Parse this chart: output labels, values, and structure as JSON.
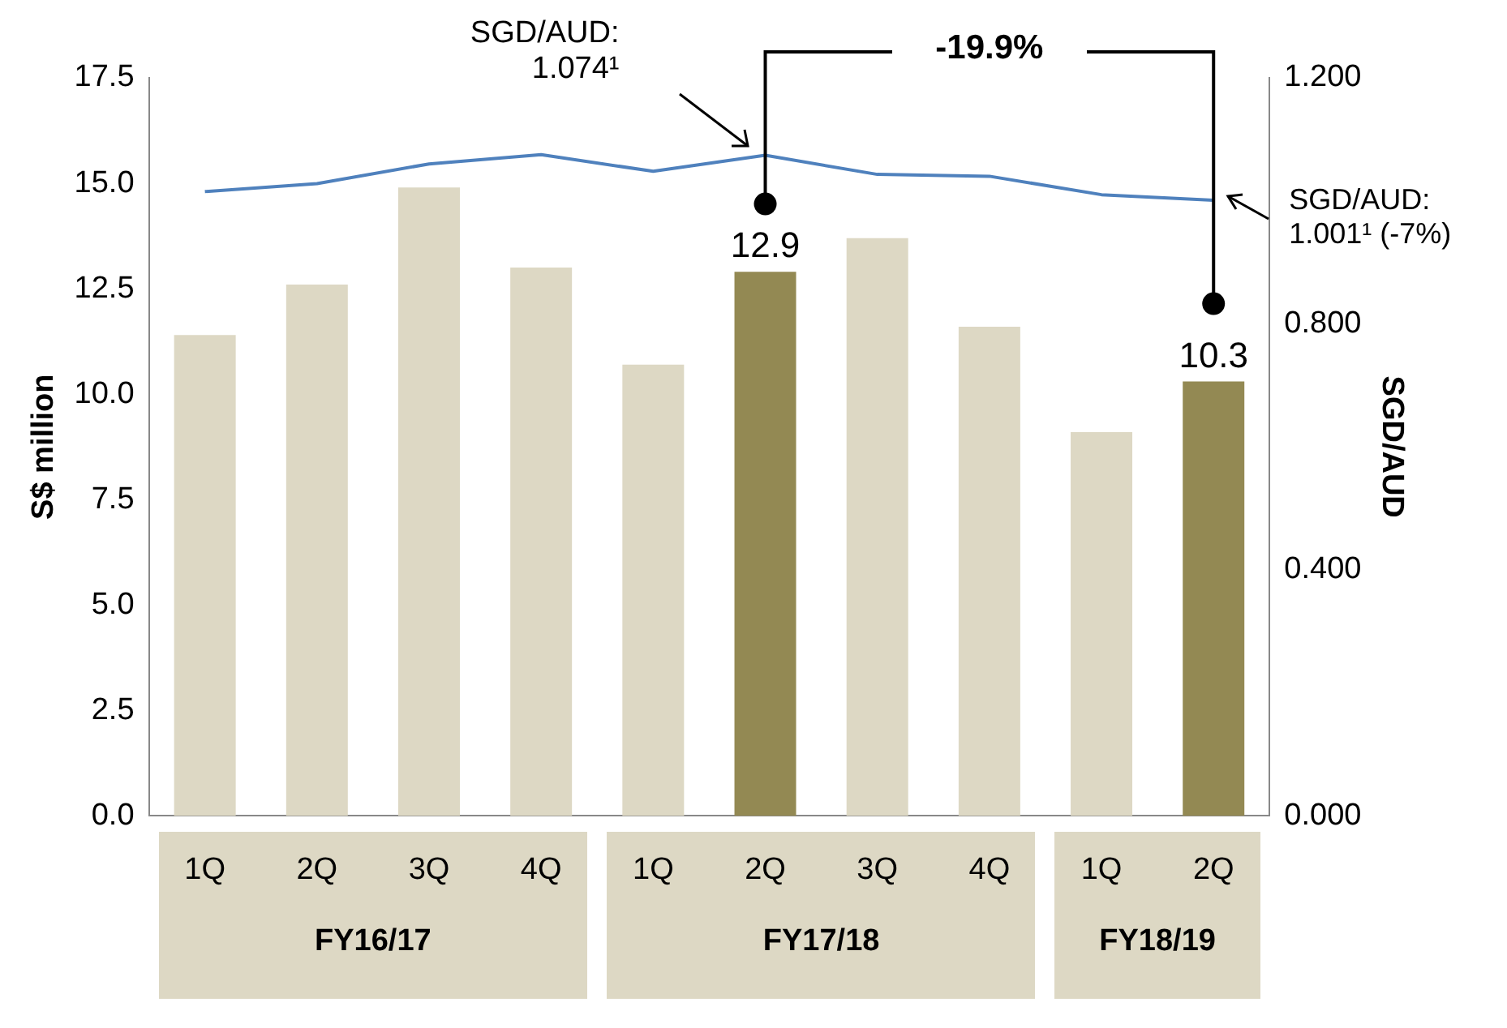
{
  "chart_data": {
    "type": "bar",
    "ylabel": "S$ million",
    "y2label": "SGD/AUD",
    "categories": [
      "1Q",
      "2Q",
      "3Q",
      "4Q",
      "1Q",
      "2Q",
      "3Q",
      "4Q",
      "1Q",
      "2Q"
    ],
    "series": [
      {
        "colors": [
          "#ddd8c4",
          "#ddd8c4",
          "#ddd8c4",
          "#ddd8c4",
          "#ddd8c4",
          "#938953",
          "#ddd8c4",
          "#ddd8c4",
          "#ddd8c4",
          "#938953"
        ],
        "values": [
          11.4,
          12.6,
          14.9,
          13.0,
          10.7,
          12.9,
          13.7,
          11.6,
          9.1,
          10.3
        ],
        "value_labels": [
          null,
          null,
          null,
          null,
          null,
          "12.9",
          null,
          null,
          null,
          "10.3"
        ]
      },
      {
        "type": "line",
        "color": "#4f81bd",
        "axis": "y2",
        "values": [
          1.015,
          1.028,
          1.06,
          1.075,
          1.048,
          1.074,
          1.043,
          1.04,
          1.01,
          1.001
        ]
      }
    ],
    "ylim": [
      0,
      17.5
    ],
    "yticks": [
      {
        "value": 0,
        "label": "0.0"
      },
      {
        "value": 2.5,
        "label": "2.5"
      },
      {
        "value": 5,
        "label": "5.0"
      },
      {
        "value": 7.5,
        "label": "7.5"
      },
      {
        "value": 10,
        "label": "10.0"
      },
      {
        "value": 12.5,
        "label": "12.5"
      },
      {
        "value": 15,
        "label": "15.0"
      },
      {
        "value": 17.5,
        "label": "17.5"
      }
    ],
    "y2lim": [
      0,
      1.2
    ],
    "y2ticks": [
      {
        "value": 0,
        "label": "0.000"
      },
      {
        "value": 0.4,
        "label": "0.400"
      },
      {
        "value": 0.8,
        "label": "0.800"
      },
      {
        "value": 1.2,
        "label": "1.200"
      }
    ],
    "grid": false,
    "legend": false,
    "marker": "none",
    "line_style": "solid",
    "annotations": [
      "SGD/AUD: 1.074¹",
      "-19.9%",
      "SGD/AUD: 1.001¹ (-7%)",
      "FY16/17",
      "FY17/18",
      "FY18/19"
    ]
  }
}
